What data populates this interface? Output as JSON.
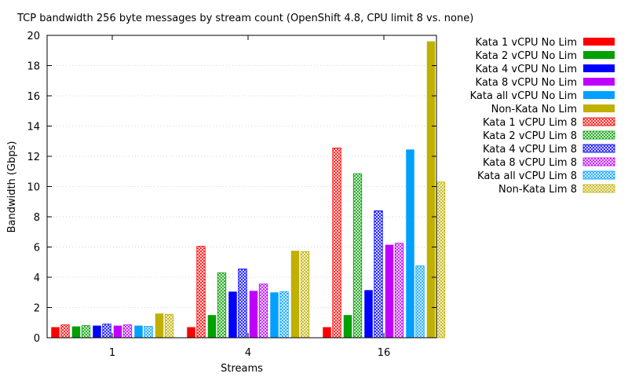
{
  "chart_data": {
    "type": "bar",
    "title": "TCP bandwidth 256 byte messages by stream count (OpenShift 4.8, CPU limit 8 vs. none)",
    "xlabel": "Streams",
    "ylabel": "Bandwidth (Gbps)",
    "ylim": [
      0,
      20
    ],
    "yticks": [
      0,
      2,
      4,
      6,
      8,
      10,
      12,
      14,
      16,
      18,
      20
    ],
    "categories": [
      "1",
      "4",
      "16"
    ],
    "grid": true,
    "legend_position": "right",
    "series": [
      {
        "name": "Kata 1 vCPU No Lim",
        "color": "#ff0000",
        "pattern": "solid",
        "values": [
          0.7,
          0.7,
          0.7
        ]
      },
      {
        "name": "Kata 1 vCPU Lim 8",
        "color": "#ff0000",
        "pattern": "hatch",
        "values": [
          0.85,
          6.05,
          12.55
        ]
      },
      {
        "name": "Kata 2 vCPU No Lim",
        "color": "#00a000",
        "pattern": "solid",
        "values": [
          0.75,
          1.5,
          1.5
        ]
      },
      {
        "name": "Kata 2 vCPU Lim 8",
        "color": "#00a000",
        "pattern": "hatch",
        "values": [
          0.8,
          4.3,
          10.85
        ]
      },
      {
        "name": "Kata 4 vCPU No Lim",
        "color": "#0000ff",
        "pattern": "solid",
        "values": [
          0.8,
          3.05,
          3.15
        ]
      },
      {
        "name": "Kata 4 vCPU Lim 8",
        "color": "#0000ff",
        "pattern": "hatch",
        "values": [
          0.9,
          4.55,
          8.4
        ]
      },
      {
        "name": "Kata 8 vCPU No Lim",
        "color": "#c000ff",
        "pattern": "solid",
        "values": [
          0.8,
          3.1,
          6.15
        ]
      },
      {
        "name": "Kata 8 vCPU Lim 8",
        "color": "#c000ff",
        "pattern": "hatch",
        "values": [
          0.85,
          3.55,
          6.25
        ]
      },
      {
        "name": "Kata all vCPU No Lim",
        "color": "#00a0ff",
        "pattern": "solid",
        "values": [
          0.8,
          3.0,
          12.45
        ]
      },
      {
        "name": "Kata all vCPU Lim 8",
        "color": "#00a0ff",
        "pattern": "hatch",
        "values": [
          0.75,
          3.05,
          4.75
        ]
      },
      {
        "name": "Non-Kata No Lim",
        "color": "#c0b000",
        "pattern": "solid",
        "values": [
          1.6,
          5.75,
          19.6
        ]
      },
      {
        "name": "Non-Kata Lim 8",
        "color": "#c0b000",
        "pattern": "hatch",
        "values": [
          1.55,
          5.7,
          10.3
        ]
      }
    ],
    "legend_order": [
      "Kata 1 vCPU No Lim",
      "Kata 2 vCPU No Lim",
      "Kata 4 vCPU No Lim",
      "Kata 8 vCPU No Lim",
      "Kata all vCPU No Lim",
      "Non-Kata No Lim",
      "Kata 1 vCPU Lim 8",
      "Kata 2 vCPU Lim 8",
      "Kata 4 vCPU Lim 8",
      "Kata 8 vCPU Lim 8",
      "Kata all vCPU Lim 8",
      "Non-Kata Lim 8"
    ]
  }
}
